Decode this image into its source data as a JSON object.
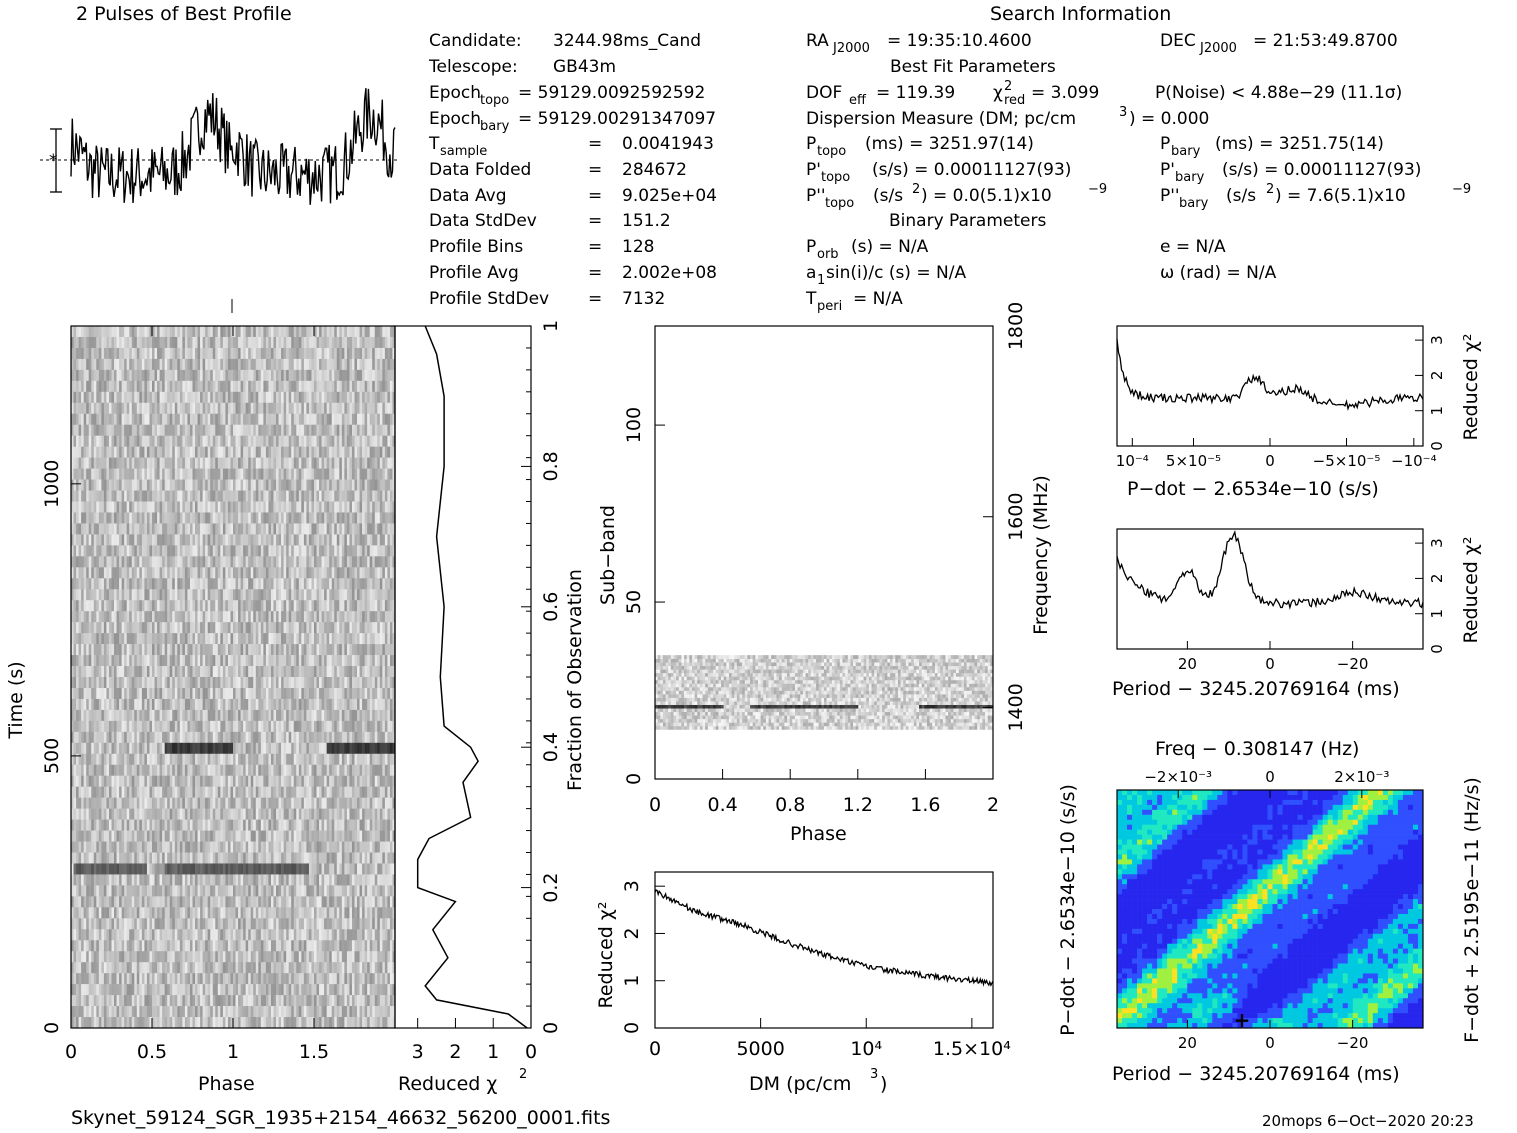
{
  "title_profile": "2 Pulses of Best Profile",
  "search_info_title": "Search Information",
  "info_left": [
    {
      "label": "Candidate:",
      "value": "3244.98ms_Cand"
    },
    {
      "label": "Telescope:",
      "value": "GB43m"
    },
    {
      "label": "Epoch",
      "sub": "topo",
      "value": "= 59129.0092592592"
    },
    {
      "label": "Epoch",
      "sub": "bary",
      "value": "= 59129.00291347097"
    },
    {
      "label": "T",
      "sub": "sample",
      "value": "0.0041943"
    },
    {
      "label": "Data Folded",
      "value": "284672"
    },
    {
      "label": "Data Avg",
      "value": "9.025e+04"
    },
    {
      "label": "Data StdDev",
      "value": "151.2"
    },
    {
      "label": "Profile Bins",
      "value": "128"
    },
    {
      "label": "Profile Avg",
      "value": "2.002e+08"
    },
    {
      "label": "Profile StdDev",
      "value": "7132"
    }
  ],
  "info_right": {
    "ra": "RA",
    "ra_sub": "J2000",
    "ra_value": "= 19:35:10.4600",
    "dec": "DEC",
    "dec_sub": "J2000",
    "dec_value": "= 21:53:49.8700",
    "best_fit_title": "Best Fit Parameters",
    "dof": "DOF",
    "dof_sub": "eff",
    "dof_value": "= 119.39",
    "chi": "χ",
    "chi_sub": "red",
    "chi_value": "= 3.099",
    "pnoise": "P(Noise) < 4.88e−29   (11.1σ)",
    "dm_line": "Dispersion Measure (DM; pc/cm",
    "dm_line_end": ") = 0.000",
    "ptopo_label": "P",
    "ptopo_sub": "topo",
    "ptopo_value": "(ms) =  3251.97(14)",
    "pbary_label": "P",
    "pbary_sub": "bary",
    "pbary_value": "(ms) =  3251.75(14)",
    "pdtopo_label": "P'",
    "pdtopo_value": "(s/s) =  0.00011127(93)",
    "pdbary_label": "P'",
    "pdbary_value": "(s/s) =  0.00011127(93)",
    "pddtopo_label": "P''",
    "pddtopo_value": "(s/s",
    "pddtopo_value2": ") = 0.0(5.1)x10",
    "pddbary_label": "P''",
    "pddbary_value": "(s/s",
    "pddbary_value2": ") =  7.6(5.1)x10",
    "binary_title": "Binary Parameters",
    "porb": "P",
    "porb_sub": "orb",
    "porb_value": "(s) = N/A",
    "ecc": "e = N/A",
    "asini": "a",
    "asini_rest": "sin(i)/c (s) = N/A",
    "omega": "ω (rad) = N/A",
    "tperi": "T",
    "tperi_sub": "peri",
    "tperi_value": "= N/A"
  },
  "footer_left": "Skynet_59124_SGR_1935+2154_46632_56200_0001.fits",
  "footer_right": "20mops  6−Oct−2020 20:23",
  "chart_data": [
    {
      "name": "pulse-profile",
      "type": "line",
      "title": "2 Pulses of Best Profile",
      "x_range": [
        0,
        2
      ],
      "description": "two copies of profile, noisy"
    },
    {
      "name": "time-phase",
      "type": "heatmap",
      "xlabel": "Phase",
      "ylabel": "Time (s)",
      "x_ticks": [
        "0",
        "0.5",
        "1",
        "1.5"
      ],
      "y_ticks": [
        "0",
        "500",
        "1000"
      ],
      "xlim": [
        0,
        2
      ],
      "ylim": [
        0,
        1290
      ],
      "dark_bands_time_s": [
        270,
        480
      ]
    },
    {
      "name": "time-reduced-chi2",
      "type": "line",
      "xlabel": "Reduced χ²",
      "x_ticks": [
        "3",
        "2",
        "1",
        "0"
      ],
      "right_label": "Fraction of Observation",
      "right_ticks": [
        "0",
        "0.2",
        "0.4",
        "0.6",
        "0.8",
        "1"
      ]
    },
    {
      "name": "subband-phase",
      "type": "heatmap",
      "xlabel": "Phase",
      "ylabel": "Sub−band",
      "x_ticks": [
        "0",
        "0.4",
        "0.8",
        "1.2",
        "1.6",
        "2"
      ],
      "y_ticks": [
        "0",
        "50",
        "100"
      ],
      "right_label": "Frequency (MHz)",
      "right_ticks": [
        "1400",
        "1600",
        "1800"
      ],
      "active_subbands": [
        14,
        35
      ]
    },
    {
      "name": "dm-chi2",
      "type": "line",
      "xlabel": "DM (pc/cm³)",
      "ylabel": "Reduced χ²",
      "x_ticks": [
        "0",
        "5000",
        "10⁴",
        "1.5×10⁴"
      ],
      "y_ticks": [
        "0",
        "1",
        "2",
        "3"
      ],
      "xlim": [
        0,
        16000
      ],
      "ylim": [
        0,
        3.3
      ],
      "x": [
        0,
        2000,
        4000,
        6000,
        8000,
        10000,
        12000,
        14000,
        16000
      ],
      "y": [
        2.9,
        2.45,
        2.2,
        1.85,
        1.55,
        1.3,
        1.15,
        1.05,
        0.95
      ]
    },
    {
      "name": "pdot-chi2",
      "type": "line",
      "xlabel": "P−dot − 2.6534e−10 (s/s)",
      "ylabel": "Reduced χ²",
      "x_ticks": [
        "10⁻⁴",
        "5×10⁻⁵",
        "0",
        "−5×10⁻⁵",
        "−10⁻⁴"
      ],
      "y_ticks": [
        "0",
        "1",
        "2",
        "3"
      ]
    },
    {
      "name": "period-chi2",
      "type": "line",
      "xlabel": "Period − 3245.20769164 (ms)",
      "ylabel": "Reduced χ²",
      "x_ticks": [
        "20",
        "0",
        "−20"
      ],
      "y_ticks": [
        "0",
        "1",
        "2",
        "3"
      ]
    },
    {
      "name": "p-pdot",
      "type": "heatmap",
      "title": "Freq − 0.308147 (Hz)",
      "xlabel": "Period − 3245.20769164 (ms)",
      "ylabel": "P−dot − 2.6534e−10 (s/s)",
      "right_label": "F−dot + 2.5195e−11 (Hz/s)",
      "x_ticks": [
        "20",
        "0",
        "−20"
      ],
      "top_ticks": [
        "−2×10⁻³",
        "0",
        "2×10⁻³"
      ]
    }
  ],
  "colors": {
    "axis": "#000000",
    "heat_low": "#1a1aff",
    "heat_mid": "#00e5e5",
    "heat_high": "#ffdd00"
  }
}
